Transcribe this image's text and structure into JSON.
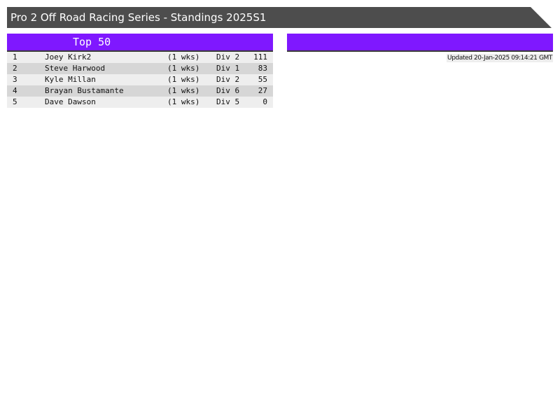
{
  "header": {
    "title": "Pro 2 Off Road Racing Series - Standings 2025S1"
  },
  "left_panel": {
    "title": "Top 50",
    "rows": [
      {
        "rank": "1",
        "name": "Joey Kirk2",
        "weeks": "(1 wks)",
        "div": "Div 2",
        "points": "111"
      },
      {
        "rank": "2",
        "name": "Steve Harwood",
        "weeks": "(1 wks)",
        "div": "Div 1",
        "points": "83"
      },
      {
        "rank": "3",
        "name": "Kyle Millan",
        "weeks": "(1 wks)",
        "div": "Div 2",
        "points": "55"
      },
      {
        "rank": "4",
        "name": "Brayan Bustamante",
        "weeks": "(1 wks)",
        "div": "Div 6",
        "points": "27"
      },
      {
        "rank": "5",
        "name": "Dave Dawson",
        "weeks": "(1 wks)",
        "div": "Div 5",
        "points": "0"
      }
    ]
  },
  "right_panel": {
    "updated": "Updated 20-Jan-2025 09:14:21 GMT"
  },
  "colors": {
    "header_bg": "#4d4d4d",
    "accent": "#7f18ff"
  }
}
